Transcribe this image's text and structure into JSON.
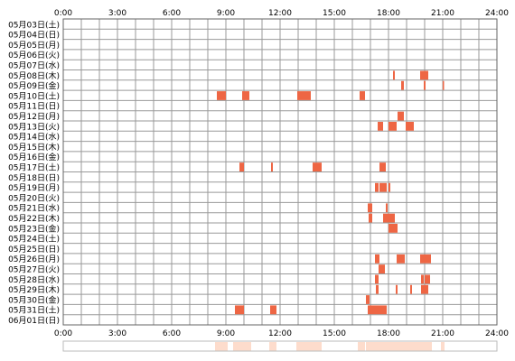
{
  "chart_data": {
    "type": "heatmap",
    "title": "",
    "xlabel": "",
    "ylabel": "",
    "x_range_hours": [
      0,
      24
    ],
    "x_ticks": [
      "0:00",
      "3:00",
      "6:00",
      "9:00",
      "12:00",
      "15:00",
      "18:00",
      "21:00",
      "24:00"
    ],
    "days": [
      "05月03日(土)",
      "05月04日(日)",
      "05月05日(月)",
      "05月06日(火)",
      "05月07日(水)",
      "05月08日(木)",
      "05月09日(金)",
      "05月10日(土)",
      "05月11日(日)",
      "05月12日(月)",
      "05月13日(火)",
      "05月14日(水)",
      "05月15日(木)",
      "05月16日(金)",
      "05月17日(土)",
      "05月18日(日)",
      "05月19日(月)",
      "05月20日(火)",
      "05月21日(水)",
      "05月22日(木)",
      "05月23日(金)",
      "05月24日(土)",
      "05月25日(日)",
      "05月26日(月)",
      "05月27日(火)",
      "05月28日(水)",
      "05月29日(木)",
      "05月30日(金)",
      "05月31日(土)",
      "06月01日(日)"
    ],
    "grid": true,
    "colors": {
      "event": "#ee6644",
      "event_light": "#f4a086",
      "grid": "#999999",
      "frame": "#666666",
      "summary": "#fddccc"
    },
    "events": [
      {
        "day": 5,
        "start": 18.25,
        "end": 18.35
      },
      {
        "day": 5,
        "start": 19.75,
        "end": 20.2
      },
      {
        "day": 6,
        "start": 18.7,
        "end": 18.85
      },
      {
        "day": 6,
        "start": 19.95,
        "end": 20.05
      },
      {
        "day": 6,
        "start": 21.0,
        "end": 21.05
      },
      {
        "day": 7,
        "start": 8.5,
        "end": 9.0
      },
      {
        "day": 7,
        "start": 9.9,
        "end": 10.3
      },
      {
        "day": 7,
        "start": 12.95,
        "end": 13.7
      },
      {
        "day": 7,
        "start": 16.4,
        "end": 16.7
      },
      {
        "day": 9,
        "start": 18.5,
        "end": 18.85
      },
      {
        "day": 10,
        "start": 17.4,
        "end": 17.7
      },
      {
        "day": 10,
        "start": 18.0,
        "end": 18.45
      },
      {
        "day": 10,
        "start": 18.95,
        "end": 19.4
      },
      {
        "day": 14,
        "start": 9.75,
        "end": 10.0
      },
      {
        "day": 14,
        "start": 11.5,
        "end": 11.6
      },
      {
        "day": 14,
        "start": 13.8,
        "end": 14.3
      },
      {
        "day": 14,
        "start": 17.5,
        "end": 17.85
      },
      {
        "day": 16,
        "start": 17.25,
        "end": 17.45
      },
      {
        "day": 16,
        "start": 17.5,
        "end": 17.9
      },
      {
        "day": 16,
        "start": 18.0,
        "end": 18.1
      },
      {
        "day": 18,
        "start": 16.85,
        "end": 17.1
      },
      {
        "day": 18,
        "start": 17.85,
        "end": 17.95
      },
      {
        "day": 19,
        "start": 16.9,
        "end": 17.1
      },
      {
        "day": 19,
        "start": 17.7,
        "end": 18.35
      },
      {
        "day": 20,
        "start": 18.0,
        "end": 18.5
      },
      {
        "day": 23,
        "start": 17.25,
        "end": 17.5
      },
      {
        "day": 23,
        "start": 18.45,
        "end": 18.9
      },
      {
        "day": 23,
        "start": 19.75,
        "end": 20.35
      },
      {
        "day": 24,
        "start": 17.45,
        "end": 17.8
      },
      {
        "day": 25,
        "start": 17.25,
        "end": 17.45
      },
      {
        "day": 25,
        "start": 19.8,
        "end": 19.95
      },
      {
        "day": 25,
        "start": 20.0,
        "end": 20.3
      },
      {
        "day": 26,
        "start": 17.3,
        "end": 17.45
      },
      {
        "day": 26,
        "start": 18.4,
        "end": 18.5
      },
      {
        "day": 26,
        "start": 19.2,
        "end": 19.3
      },
      {
        "day": 26,
        "start": 19.8,
        "end": 20.2
      },
      {
        "day": 27,
        "start": 16.75,
        "end": 16.95
      },
      {
        "day": 28,
        "start": 9.5,
        "end": 10.0
      },
      {
        "day": 28,
        "start": 11.45,
        "end": 11.8
      },
      {
        "day": 28,
        "start": 16.85,
        "end": 17.2
      },
      {
        "day": 28,
        "start": 17.2,
        "end": 17.9
      }
    ],
    "summary_bands": [
      {
        "start": 8.4,
        "end": 9.1
      },
      {
        "start": 9.4,
        "end": 10.4
      },
      {
        "start": 11.4,
        "end": 11.8
      },
      {
        "start": 12.9,
        "end": 14.3
      },
      {
        "start": 16.3,
        "end": 16.7
      },
      {
        "start": 16.75,
        "end": 20.4
      },
      {
        "start": 20.9,
        "end": 21.1
      }
    ]
  }
}
